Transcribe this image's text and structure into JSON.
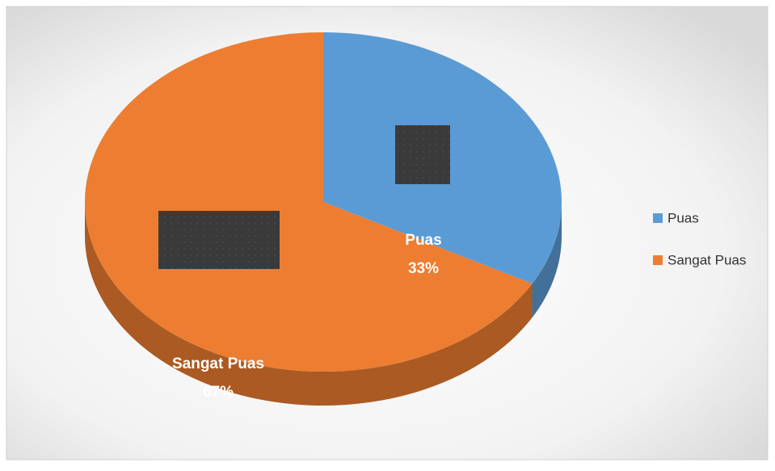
{
  "chart_data": {
    "type": "pie",
    "categories": [
      "Puas",
      "Sangat Puas"
    ],
    "values": [
      33,
      67
    ],
    "value_labels": [
      "33%",
      "67%"
    ],
    "colors": [
      "#5b9bd5",
      "#ed7d31"
    ],
    "legend": "right"
  }
}
